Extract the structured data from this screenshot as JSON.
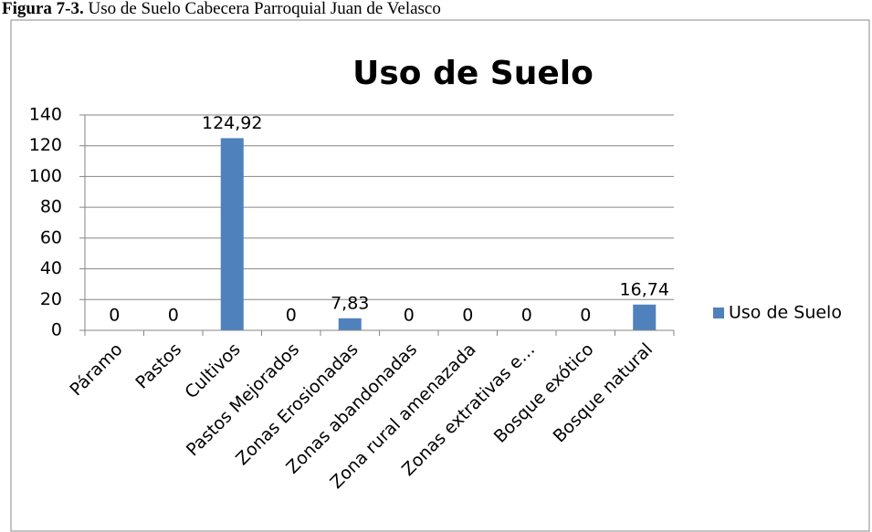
{
  "caption": {
    "label": "Figura 7-3.",
    "text": "Uso de Suelo Cabecera Parroquial Juan de Velasco"
  },
  "chart_data": {
    "type": "bar",
    "title": "Uso de Suelo",
    "categories": [
      "Páramo",
      "Pastos",
      "Cultivos",
      "Pastos Mejorados",
      "Zonas Erosionadas",
      "Zonas abandonadas",
      "Zona rural amenazada",
      "Zonas extrativas e…",
      "Bosque exótico",
      "Bosque natural"
    ],
    "series": [
      {
        "name": "Uso de Suelo",
        "color": "#4f81bd",
        "values": [
          0,
          0,
          124.92,
          0,
          7.83,
          0,
          0,
          0,
          0,
          16.74
        ],
        "value_labels": [
          "0",
          "0",
          "124,92",
          "0",
          "7,83",
          "0",
          "0",
          "0",
          "0",
          "16,74"
        ]
      }
    ],
    "ylim": [
      0,
      140
    ],
    "yticks": [
      0,
      20,
      40,
      60,
      80,
      100,
      120,
      140
    ],
    "grid": true,
    "legend": "right"
  }
}
